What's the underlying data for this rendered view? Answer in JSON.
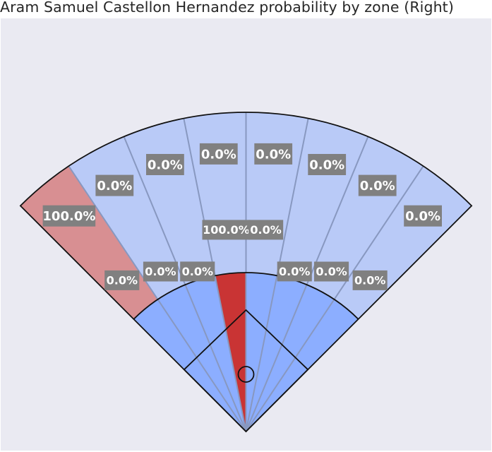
{
  "chart_data": {
    "type": "polar-zone",
    "title": "Aram Samuel Castellon Hernandez probability by zone (Right)",
    "zone_colors": {
      "infield_base": "#8caeff",
      "outfield_base": "#b9caf7",
      "hot_infield": "#c93434",
      "hot_outfield": "#d88f92",
      "label_box": "#808080",
      "background": "#eaeaf2"
    },
    "outfield_zones": [
      {
        "zone": 1,
        "value": "100.0%",
        "probability": 1.0
      },
      {
        "zone": 2,
        "value": "0.0%",
        "probability": 0.0
      },
      {
        "zone": 3,
        "value": "0.0%",
        "probability": 0.0
      },
      {
        "zone": 4,
        "value": "0.0%",
        "probability": 0.0
      },
      {
        "zone": 5,
        "value": "0.0%",
        "probability": 0.0
      },
      {
        "zone": 6,
        "value": "0.0%",
        "probability": 0.0
      },
      {
        "zone": 7,
        "value": "0.0%",
        "probability": 0.0
      },
      {
        "zone": 8,
        "value": "0.0%",
        "probability": 0.0
      }
    ],
    "infield_zones": [
      {
        "zone": 1,
        "value": "0.0%",
        "probability": 0.0
      },
      {
        "zone": 2,
        "value": "0.0%",
        "probability": 0.0
      },
      {
        "zone": 3,
        "value": "0.0%",
        "probability": 0.0
      },
      {
        "zone": 4,
        "value": "100.0%",
        "probability": 1.0
      },
      {
        "zone": 5,
        "value": "0.0%",
        "probability": 0.0
      },
      {
        "zone": 6,
        "value": "0.0%",
        "probability": 0.0
      },
      {
        "zone": 7,
        "value": "0.0%",
        "probability": 0.0
      },
      {
        "zone": 8,
        "value": "0.0%",
        "probability": 0.0
      }
    ]
  }
}
